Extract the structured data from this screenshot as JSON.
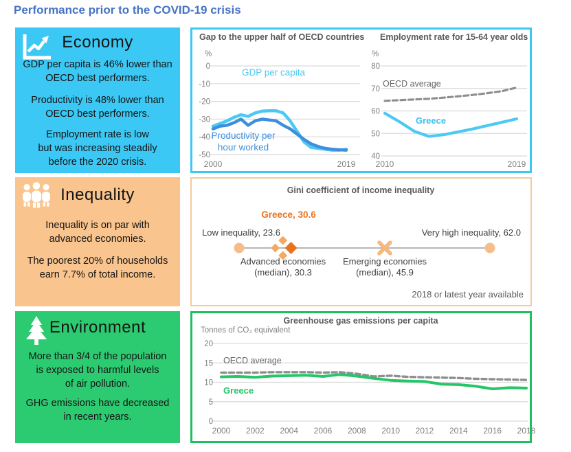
{
  "title": "Performance prior to the COVID-19 crisis",
  "colors": {
    "title_blue": "#4472C4",
    "economy_cyan": "#3BC8F5",
    "inequality_orange": "#F9C48D",
    "environment_green": "#2DCB71",
    "gdp_line": "#4CC9F3",
    "productivity_line": "#3D8FDE",
    "oecd_gray": "#8E8E8E",
    "greece_green_line": "#25C667",
    "greece_orange": "#E8731F",
    "marker_light_orange": "#F6BD8B",
    "chart_title_gray": "#595959",
    "axis_gray": "#7F7F7F",
    "grid_gray": "#DADADA"
  },
  "panels": {
    "economy": {
      "heading": "Economy",
      "icon": "trend-chart-icon",
      "paragraphs": [
        "GDP per capita is 46% lower than\nOECD best performers.",
        "Productivity is 48% lower than\nOECD best performers.",
        "Employment rate is low\nbut was increasing steadily\nbefore the 2020 crisis."
      ]
    },
    "inequality": {
      "heading": "Inequality",
      "icon": "people-icon",
      "paragraphs": [
        "Inequality is on par with\nadvanced economies.",
        "The poorest 20% of households\nearn 7.7% of total income."
      ]
    },
    "environment": {
      "heading": "Environment",
      "icon": "tree-icon",
      "paragraphs": [
        "More than 3/4 of the population\nis exposed to harmful levels\nof air pollution.",
        "GHG emissions have decreased\nin recent years."
      ]
    }
  },
  "chart_data": [
    {
      "id": "gap",
      "type": "line",
      "title": "Gap to the upper half of OECD countries",
      "unit": "%",
      "x": [
        2000,
        2001,
        2002,
        2003,
        2004,
        2005,
        2006,
        2007,
        2008,
        2009,
        2010,
        2011,
        2012,
        2013,
        2014,
        2015,
        2016,
        2017,
        2018,
        2019
      ],
      "xticks": [
        2000,
        2019
      ],
      "ylim": [
        -50,
        0
      ],
      "yticks": [
        0,
        -10,
        -20,
        -30,
        -40,
        -50
      ],
      "grid": true,
      "series": [
        {
          "name": "GDP per capita",
          "color": "#4CC9F3",
          "width": 4.5,
          "values": [
            -34,
            -32.5,
            -31,
            -29,
            -27.5,
            -28.5,
            -26.5,
            -25.5,
            -25.3,
            -25.3,
            -26.5,
            -31,
            -37,
            -43,
            -46,
            -46.5,
            -47,
            -47.5,
            -47.5,
            -47
          ]
        },
        {
          "name": "Productivity per hour worked",
          "color": "#3D8FDE",
          "width": 4.5,
          "values": [
            -35.5,
            -34,
            -33.5,
            -32,
            -30,
            -33.5,
            -31,
            -30,
            -30.5,
            -31,
            -33.5,
            -35.5,
            -38.5,
            -41.5,
            -44,
            -45.5,
            -46.5,
            -47,
            -47.3,
            -47.5
          ]
        }
      ],
      "annotations": [
        {
          "text": "GDP per capita",
          "color": "#4CC9F3"
        },
        {
          "text": "Productivity per\nhour worked",
          "color": "#3D8FDE"
        }
      ]
    },
    {
      "id": "employment",
      "type": "line",
      "title": "Employment rate for 15-64 year olds",
      "unit": "%",
      "x": [
        2010,
        2011,
        2012,
        2013,
        2014,
        2015,
        2016,
        2017,
        2018,
        2019
      ],
      "xticks": [
        2010,
        2019
      ],
      "ylim": [
        40,
        80
      ],
      "yticks": [
        80,
        70,
        60,
        50,
        40
      ],
      "grid": true,
      "series": [
        {
          "name": "OECD average",
          "color": "#8E8E8E",
          "width": 3.2,
          "dash": "7 4.5",
          "values": [
            64.5,
            64.8,
            65.1,
            65.4,
            65.9,
            66.5,
            67.1,
            67.9,
            68.8,
            70.4
          ]
        },
        {
          "name": "Greece",
          "color": "#4CC9F3",
          "width": 4.2,
          "values": [
            59,
            55.2,
            51,
            48.7,
            49.4,
            50.7,
            52,
            53.5,
            55,
            56.5
          ]
        }
      ],
      "annotations": [
        {
          "text": "OECD average",
          "color": "#666666"
        },
        {
          "text": "Greece",
          "color": "#3FC1EF",
          "bold": true
        }
      ]
    },
    {
      "id": "gini",
      "type": "dot-line",
      "title": "Gini coefficient of income inequality",
      "scale": {
        "min": 23.6,
        "max": 62.0
      },
      "points": [
        {
          "label": "Low inequality, 23.6",
          "value": 23.6,
          "marker": "circle"
        },
        {
          "label": "Greece, 30.6",
          "value": 30.6,
          "marker": "diamond-dark"
        },
        {
          "label": "Advanced economies\n(median), 30.3",
          "value": 30.3,
          "marker": "diamond-light"
        },
        {
          "label": "Emerging economies\n(median), 45.9",
          "value": 45.9,
          "marker": "x"
        },
        {
          "label": "Very high inequality, 62.0",
          "value": 62.0,
          "marker": "circle"
        }
      ],
      "note": "2018 or latest year available"
    },
    {
      "id": "ghg",
      "type": "line",
      "title": "Greenhouse gas emissions per capita",
      "unit": "Tonnes of CO₂ equivalent",
      "x": [
        2000,
        2001,
        2002,
        2003,
        2004,
        2005,
        2006,
        2007,
        2008,
        2009,
        2010,
        2011,
        2012,
        2013,
        2014,
        2015,
        2016,
        2017,
        2018
      ],
      "xticks": [
        2000,
        2002,
        2004,
        2006,
        2008,
        2010,
        2012,
        2014,
        2016,
        2018
      ],
      "ylim": [
        0,
        20
      ],
      "yticks": [
        20,
        15,
        10,
        5,
        0
      ],
      "grid": true,
      "series": [
        {
          "name": "OECD average",
          "color": "#8E8E8E",
          "width": 3.4,
          "dash": "7 4.5",
          "values": [
            12.5,
            12.5,
            12.5,
            12.6,
            12.6,
            12.6,
            12.5,
            12.6,
            12.2,
            11.5,
            11.7,
            11.4,
            11.3,
            11.2,
            11.1,
            10.9,
            10.8,
            10.7,
            10.6
          ]
        },
        {
          "name": "Greece",
          "color": "#25C667",
          "width": 4,
          "values": [
            11.4,
            11.5,
            11.3,
            11.6,
            11.7,
            11.8,
            11.5,
            12.0,
            11.6,
            11.0,
            10.5,
            10.3,
            10.2,
            9.5,
            9.4,
            9.0,
            8.3,
            8.6,
            8.5
          ]
        }
      ],
      "annotations": [
        {
          "text": "OECD average",
          "color": "#666666"
        },
        {
          "text": "Greece",
          "color": "#25C667",
          "bold": true
        }
      ]
    }
  ]
}
